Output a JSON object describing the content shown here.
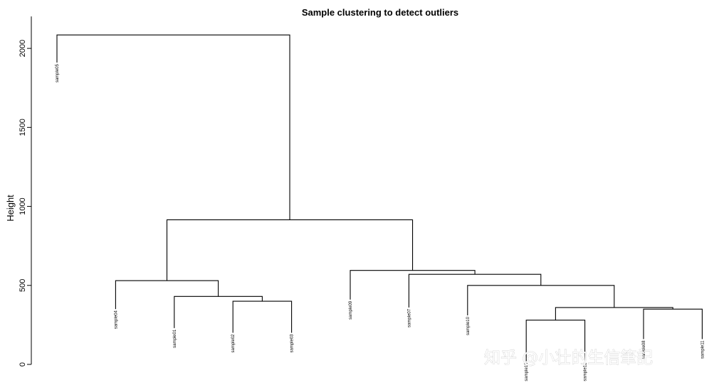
{
  "watermark": "知乎 @小壮的生信筆記",
  "chart_data": {
    "type": "dendrogram",
    "title": "Sample clustering to detect outliers",
    "ylabel": "Height",
    "xlabel": "",
    "ylim": [
      0,
      2100
    ],
    "yticks": [
      0,
      500,
      1000,
      1500,
      2000
    ],
    "grid": false,
    "leaves": [
      {
        "label": "sample05",
        "height": 1910
      },
      {
        "label": "sample04",
        "height": 350
      },
      {
        "label": "sample01",
        "height": 230
      },
      {
        "label": "sample02",
        "height": 200
      },
      {
        "label": "sample03",
        "height": 200
      },
      {
        "label": "sample09",
        "height": 410
      },
      {
        "label": "sample07",
        "height": 360
      },
      {
        "label": "sample10",
        "height": 310
      },
      {
        "label": "sample13",
        "height": 20
      },
      {
        "label": "sample12",
        "height": 20
      },
      {
        "label": "sample08",
        "height": 160
      },
      {
        "label": "sample11",
        "height": 160
      }
    ],
    "merges": [
      {
        "id": "m1",
        "left": "sample02",
        "right": "sample03",
        "height": 400
      },
      {
        "id": "m2",
        "left": "sample01",
        "right": "m1",
        "height": 430
      },
      {
        "id": "m3",
        "left": "sample04",
        "right": "m2",
        "height": 530
      },
      {
        "id": "m4",
        "left": "sample13",
        "right": "sample12",
        "height": 280
      },
      {
        "id": "m5",
        "left": "sample08",
        "right": "sample11",
        "height": 350
      },
      {
        "id": "m6",
        "left": "m4",
        "right": "m5",
        "height": 360
      },
      {
        "id": "m7",
        "left": "sample10",
        "right": "m6",
        "height": 500
      },
      {
        "id": "m8",
        "left": "sample07",
        "right": "m7",
        "height": 570
      },
      {
        "id": "m9",
        "left": "sample09",
        "right": "m8",
        "height": 595
      },
      {
        "id": "m10",
        "left": "m3",
        "right": "m9",
        "height": 915
      },
      {
        "id": "m11",
        "left": "sample05",
        "right": "m10",
        "height": 2085
      }
    ]
  }
}
